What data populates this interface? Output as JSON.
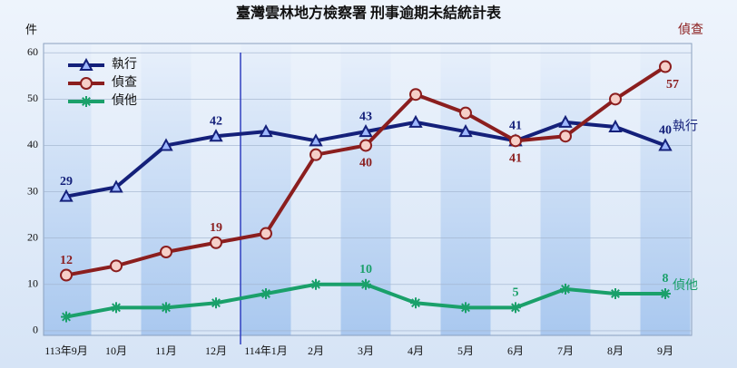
{
  "chart_data": {
    "type": "line",
    "title": "臺灣雲林地方檢察署 刑事逾期未結統計表",
    "y_label": "件",
    "categories": [
      "113年9月",
      "10月",
      "11月",
      "12月",
      "114年1月",
      "2月",
      "3月",
      "4月",
      "5月",
      "6月",
      "7月",
      "8月",
      "9月"
    ],
    "series": [
      {
        "name": "執行",
        "color": "#14207a",
        "marker": "triangle",
        "values": [
          29,
          31,
          40,
          42,
          43,
          41,
          43,
          45,
          43,
          41,
          45,
          44,
          40
        ],
        "value_labels": [
          "29",
          null,
          null,
          "42",
          null,
          null,
          "43",
          null,
          null,
          "41",
          null,
          null,
          "40"
        ]
      },
      {
        "name": "偵查",
        "color": "#8b1e1e",
        "marker": "circle",
        "values": [
          12,
          14,
          17,
          19,
          21,
          38,
          40,
          51,
          47,
          41,
          42,
          50,
          57
        ],
        "value_labels": [
          "12",
          null,
          null,
          "19",
          null,
          null,
          "40",
          null,
          null,
          "41",
          null,
          null,
          "57"
        ]
      },
      {
        "name": "偵他",
        "color": "#1aa06a",
        "marker": "star",
        "values": [
          3,
          5,
          5,
          6,
          8,
          10,
          10,
          6,
          5,
          5,
          9,
          8,
          8
        ],
        "value_labels": [
          null,
          null,
          null,
          null,
          null,
          null,
          "10",
          null,
          null,
          "5",
          null,
          null,
          "8"
        ]
      }
    ],
    "ylim": [
      -1,
      62
    ],
    "yticks": [
      0,
      10,
      20,
      30,
      40,
      50,
      60
    ],
    "grid": true,
    "legend": "upper left"
  }
}
